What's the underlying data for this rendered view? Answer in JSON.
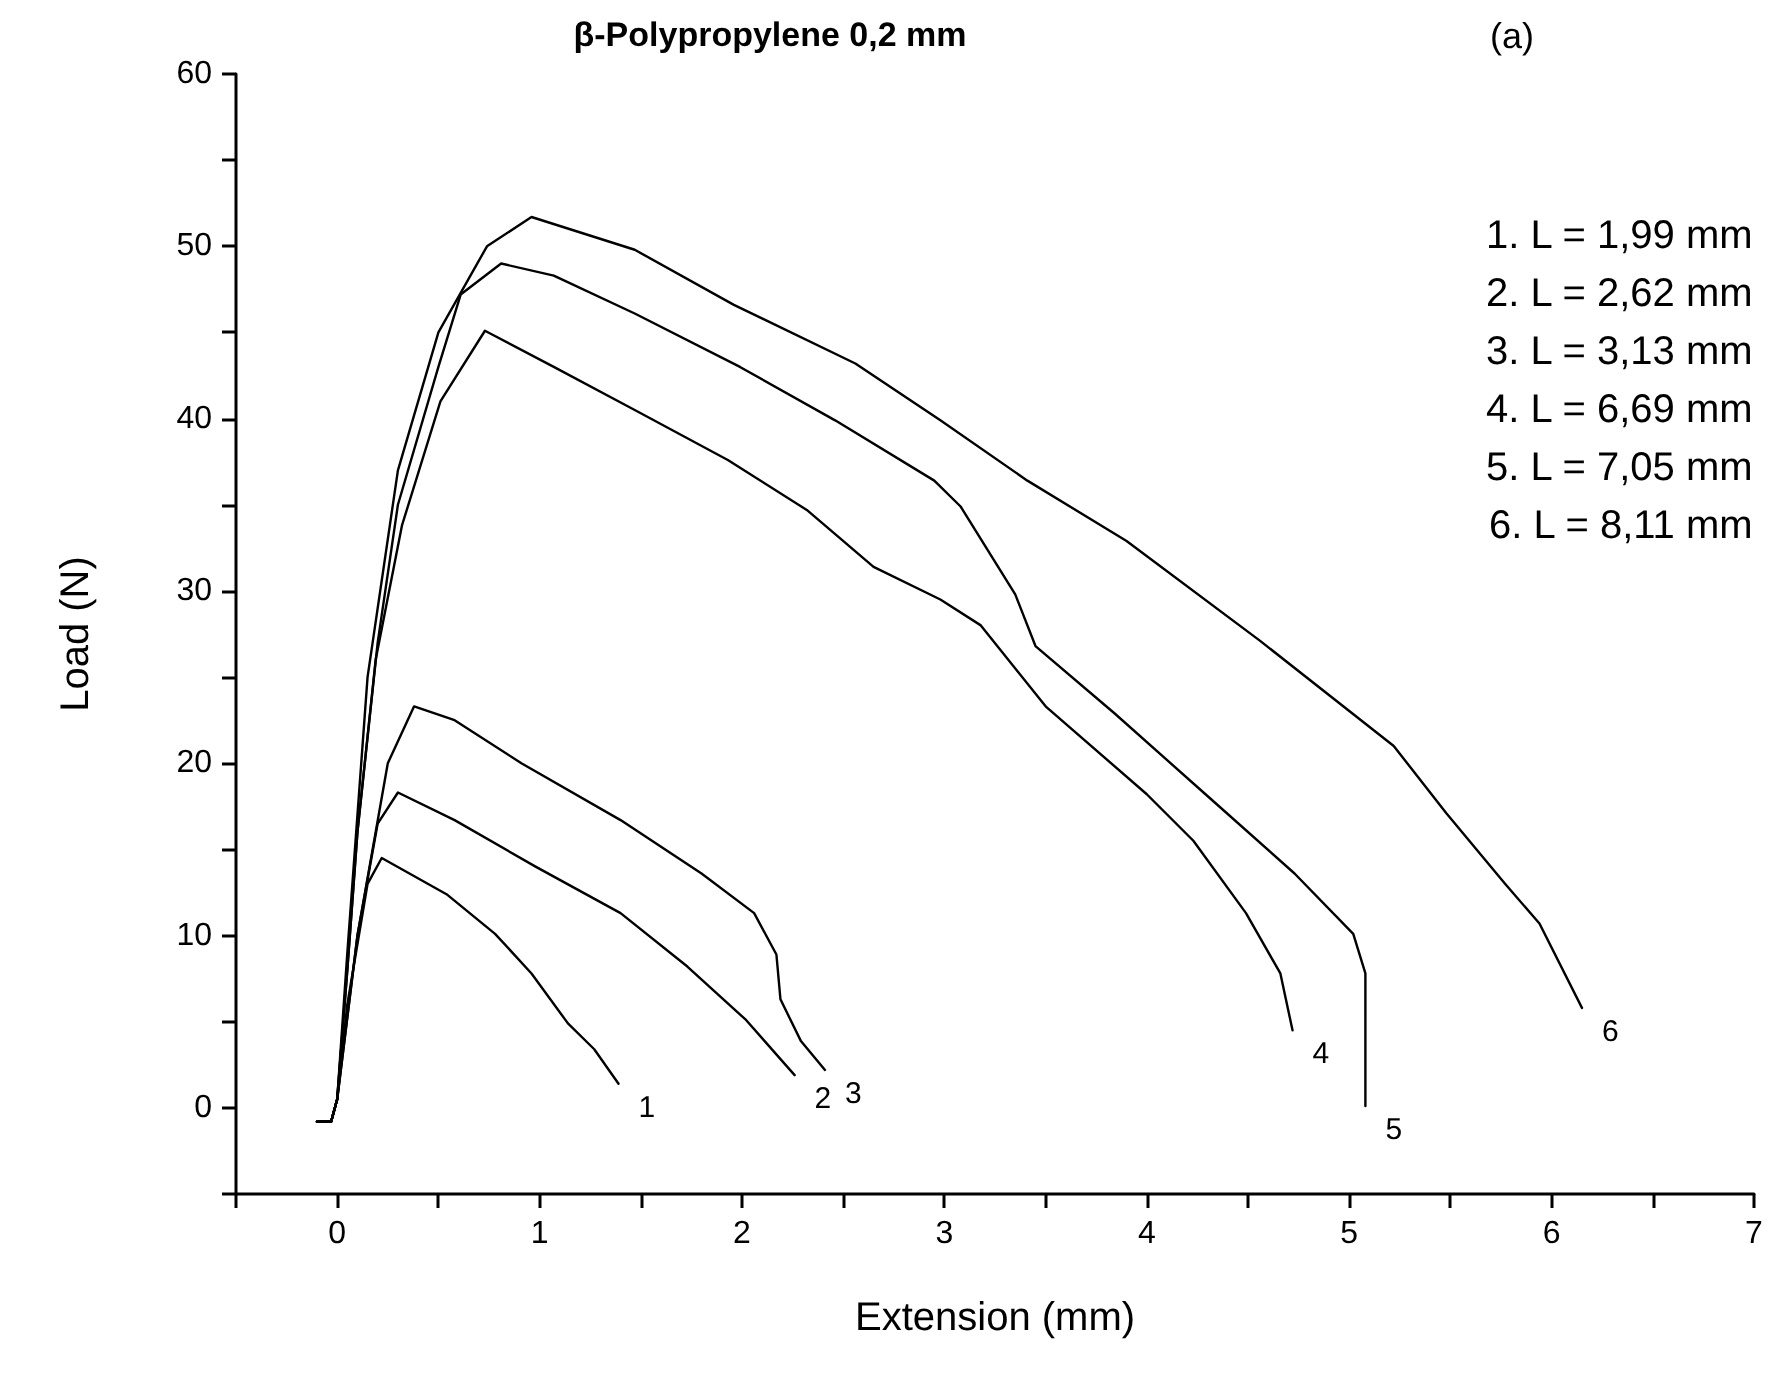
{
  "chart_data": {
    "type": "line",
    "title": "β-Polypropylene 0,2 mm",
    "subtitle": "(a)",
    "xlabel": "Extension (mm)",
    "ylabel": "Load (N)",
    "xlim": [
      -0.5,
      7
    ],
    "ylim": [
      -5,
      60
    ],
    "xticks": [
      {
        "value": -0.5,
        "label": null
      },
      0,
      {
        "value": 0.5,
        "label": null
      },
      1,
      {
        "value": 1.5,
        "label": null
      },
      2,
      {
        "value": 2.5,
        "label": null
      },
      3,
      {
        "value": 3.5,
        "label": null
      },
      4,
      {
        "value": 4.5,
        "label": null
      },
      5,
      {
        "value": 5.5,
        "label": null
      },
      6,
      {
        "value": 6.5,
        "label": null
      },
      7
    ],
    "yticks": [
      {
        "value": -5,
        "label": null
      },
      0,
      {
        "value": 5,
        "label": null
      },
      10,
      {
        "value": 15,
        "label": null
      },
      20,
      {
        "value": 25,
        "label": null
      },
      30,
      {
        "value": 35,
        "label": null
      },
      40,
      {
        "value": 45,
        "label": null
      },
      50,
      {
        "value": 55,
        "label": null
      },
      60
    ],
    "grid": false,
    "marker": "none",
    "line_style": "solid",
    "series": [
      {
        "name": "1",
        "color": "#000000",
        "x": [
          -0.1,
          -0.03,
          0,
          0.05,
          0.15,
          0.22,
          0.54,
          0.78,
          0.96,
          1.14,
          1.27,
          1.39
        ],
        "values": [
          -0.8,
          -0.8,
          0.5,
          6,
          13,
          14.5,
          12.4,
          10.1,
          7.8,
          4.9,
          3.4,
          1.4
        ]
      },
      {
        "name": "2",
        "color": "#000000",
        "x": [
          -0.1,
          -0.03,
          0,
          0.1,
          0.2,
          0.3,
          0.58,
          0.98,
          1.4,
          1.73,
          2.02,
          2.26
        ],
        "values": [
          -0.8,
          -0.8,
          0.5,
          10,
          16.5,
          18.3,
          16.7,
          14,
          11.3,
          8.2,
          5.1,
          1.9
        ]
      },
      {
        "name": "3",
        "color": "#000000",
        "x": [
          -0.1,
          -0.03,
          0,
          0.1,
          0.25,
          0.38,
          0.58,
          0.91,
          1.4,
          1.8,
          2.06,
          2.17,
          2.19,
          2.29,
          2.41
        ],
        "values": [
          -0.8,
          -0.8,
          0.5,
          10,
          20,
          23.3,
          22.5,
          20,
          16.7,
          13.6,
          11.3,
          8.9,
          6.3,
          3.9,
          2.2
        ]
      },
      {
        "name": "4",
        "color": "#000000",
        "x": [
          -0.1,
          -0.03,
          0,
          0.05,
          0.1,
          0.19,
          0.32,
          0.51,
          0.73,
          1.07,
          1.47,
          1.93,
          2.32,
          2.65,
          2.98,
          3.18,
          3.5,
          4.0,
          4.23,
          4.49,
          4.66,
          4.72
        ],
        "values": [
          -0.8,
          -0.8,
          0.5,
          8,
          16,
          26,
          33.8,
          41,
          45.1,
          43,
          40.5,
          37.6,
          34.7,
          31.4,
          29.5,
          28,
          23.3,
          18.2,
          15.5,
          11.3,
          7.8,
          4.5
        ]
      },
      {
        "name": "5",
        "color": "#000000",
        "x": [
          -0.1,
          -0.03,
          0,
          0.05,
          0.1,
          0.2,
          0.3,
          0.5,
          0.61,
          0.81,
          1.07,
          1.47,
          1.99,
          2.46,
          2.95,
          3.08,
          3.35,
          3.45,
          3.84,
          4.29,
          4.73,
          5.02,
          5.08,
          5.08
        ],
        "values": [
          -0.8,
          -0.8,
          0.5,
          8,
          16,
          27,
          35,
          43,
          47.2,
          49,
          48.3,
          46.1,
          43,
          39.9,
          36.4,
          34.9,
          29.8,
          26.8,
          22.9,
          18.2,
          13.6,
          10.1,
          7.8,
          0.1
        ]
      },
      {
        "name": "6",
        "color": "#000000",
        "x": [
          -0.1,
          -0.03,
          0,
          0.05,
          0.15,
          0.3,
          0.5,
          0.74,
          0.96,
          1.47,
          1.96,
          2.56,
          2.98,
          3.41,
          3.9,
          4.56,
          5.22,
          5.48,
          5.77,
          5.94,
          6.15
        ],
        "values": [
          -0.8,
          -0.8,
          0.5,
          9,
          25,
          37,
          45,
          50,
          51.7,
          49.8,
          46.6,
          43.2,
          39.9,
          36.4,
          32.9,
          27.1,
          21,
          17.1,
          13,
          10.7,
          5.8
        ]
      }
    ],
    "annotations": [
      "1. L = 1,99 mm",
      "2. L = 2,62 mm",
      "3. L = 3,13 mm",
      "4. L = 6,69 mm",
      "5. L = 7,05 mm",
      "6. L = 8,11 mm"
    ]
  }
}
